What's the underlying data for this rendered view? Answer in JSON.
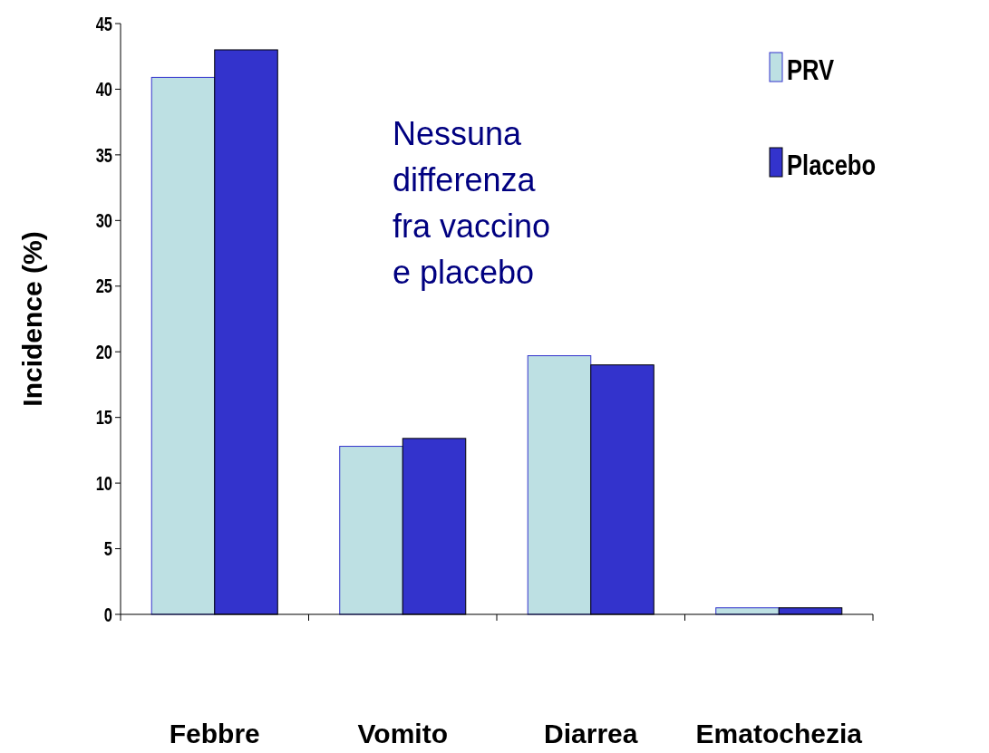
{
  "chart_data": {
    "type": "bar",
    "ylabel": "Incidence (%)",
    "categories": [
      "Febbre",
      "Vomito",
      "Diarrea",
      "Ematochezia"
    ],
    "series": [
      {
        "name": "PRV",
        "color": "#bde0e3",
        "values": [
          40.9,
          12.8,
          19.7,
          0.5
        ]
      },
      {
        "name": "Placebo",
        "color": "#3333cc",
        "values": [
          43.0,
          13.4,
          19.0,
          0.5
        ]
      }
    ],
    "ylim": [
      0,
      45
    ],
    "yticks": [
      0,
      5,
      10,
      15,
      20,
      25,
      30,
      35,
      40,
      45
    ],
    "grid": false,
    "legend": "top right",
    "annotations": [
      "Nessuna differenza fra vaccino e placebo"
    ]
  }
}
